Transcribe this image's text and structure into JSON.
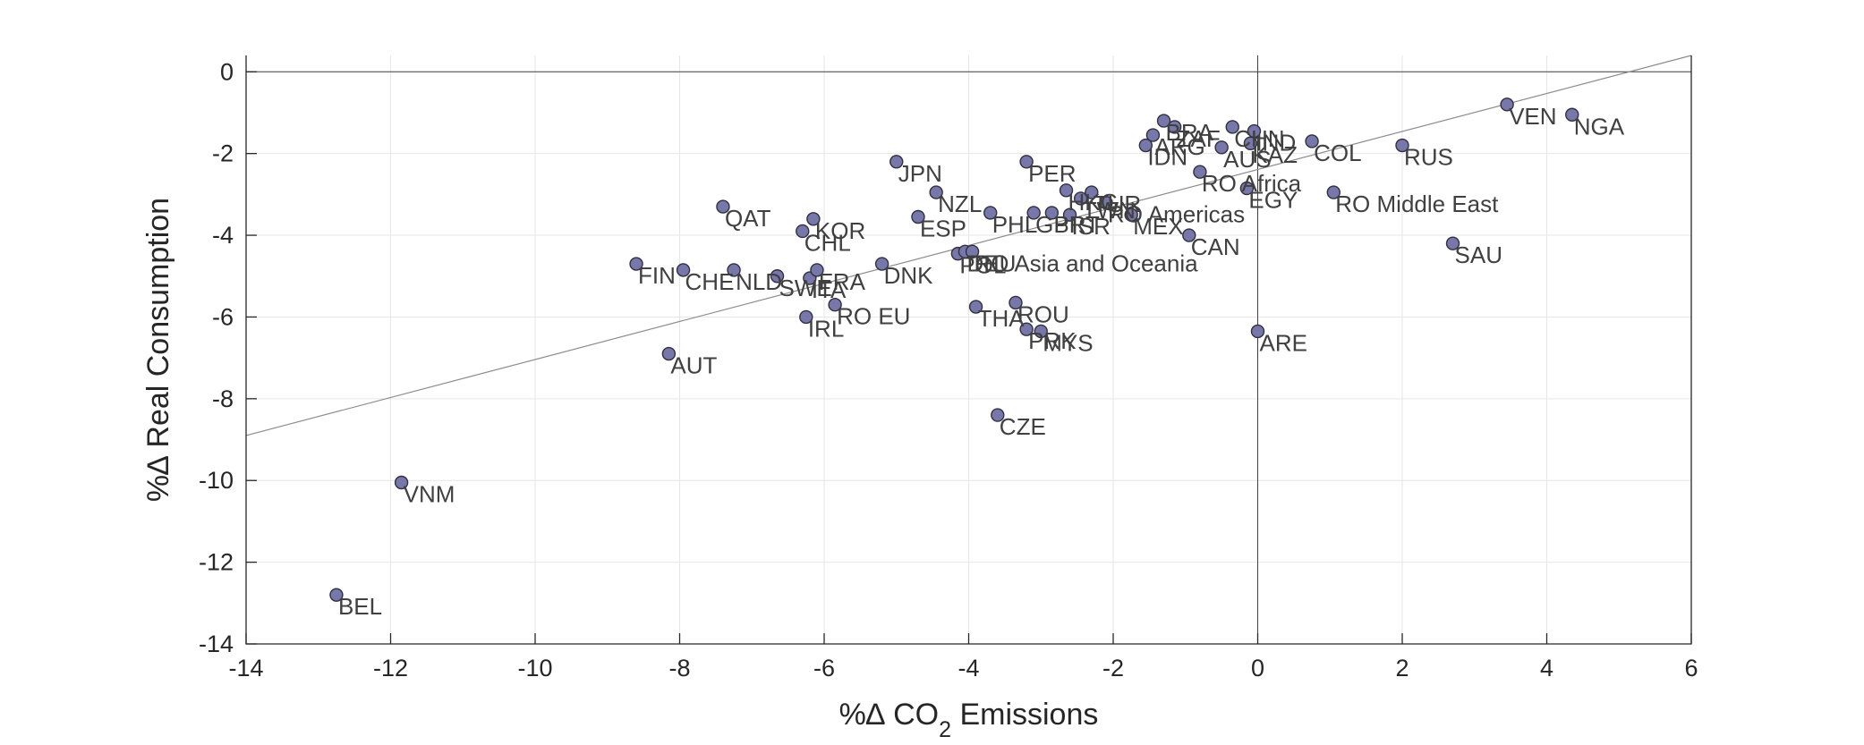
{
  "chart_data": {
    "type": "scatter",
    "title": "",
    "xlabel": {
      "prefix": "%∆ CO",
      "sub": "2",
      "suffix": " Emissions"
    },
    "ylabel": "%∆ Real Consumption",
    "xlim": [
      -14,
      6
    ],
    "ylim": [
      -14,
      0.4
    ],
    "xticks": [
      -14,
      -12,
      -10,
      -8,
      -6,
      -4,
      -2,
      0,
      2,
      4,
      6
    ],
    "yticks": [
      0,
      -2,
      -4,
      -6,
      -8,
      -10,
      -12,
      -14
    ],
    "grid": true,
    "colors": {
      "marker": "#7777aa",
      "marker_edge": "#303040",
      "fit_line": "#8c8c8c"
    },
    "fit_line": {
      "x": [
        -14,
        6
      ],
      "y": [
        -8.9,
        0.4
      ]
    },
    "points": [
      {
        "label": "BEL",
        "x": -12.75,
        "y": -12.8
      },
      {
        "label": "VNM",
        "x": -11.85,
        "y": -10.05
      },
      {
        "label": "AUT",
        "x": -8.15,
        "y": -6.9
      },
      {
        "label": "FIN",
        "x": -8.6,
        "y": -4.7
      },
      {
        "label": "CHE",
        "x": -7.95,
        "y": -4.85
      },
      {
        "label": "NLD",
        "x": -7.25,
        "y": -4.85
      },
      {
        "label": "SWE",
        "x": -6.65,
        "y": -5.0
      },
      {
        "label": "ITA",
        "x": -6.2,
        "y": -5.05
      },
      {
        "label": "FRA",
        "x": -6.1,
        "y": -4.85
      },
      {
        "label": "QAT",
        "x": -7.4,
        "y": -3.3
      },
      {
        "label": "CHL",
        "x": -6.3,
        "y": -3.9
      },
      {
        "label": "KOR",
        "x": -6.15,
        "y": -3.6
      },
      {
        "label": "IRL",
        "x": -6.25,
        "y": -6.0
      },
      {
        "label": "RO EU",
        "x": -5.85,
        "y": -5.7
      },
      {
        "label": "JPN",
        "x": -5.0,
        "y": -2.2
      },
      {
        "label": "DNK",
        "x": -5.2,
        "y": -4.7
      },
      {
        "label": "ESP",
        "x": -4.7,
        "y": -3.55
      },
      {
        "label": "NZL",
        "x": -4.45,
        "y": -2.95
      },
      {
        "label": "POL",
        "x": -4.15,
        "y": -4.45
      },
      {
        "label": "DEU",
        "x": -4.05,
        "y": -4.4
      },
      {
        "label": "RO Asia and Oceania",
        "x": -3.95,
        "y": -4.4
      },
      {
        "label": "THA",
        "x": -3.9,
        "y": -5.75
      },
      {
        "label": "PHL",
        "x": -3.7,
        "y": -3.45
      },
      {
        "label": "CZE",
        "x": -3.6,
        "y": -8.4
      },
      {
        "label": "ROU",
        "x": -3.35,
        "y": -5.65
      },
      {
        "label": "PER",
        "x": -3.2,
        "y": -2.2
      },
      {
        "label": "GBR",
        "x": -3.1,
        "y": -3.45
      },
      {
        "label": "PRT",
        "x": -2.85,
        "y": -3.45
      },
      {
        "label": "ISR",
        "x": -2.6,
        "y": -3.5
      },
      {
        "label": "HKG",
        "x": -2.65,
        "y": -2.9
      },
      {
        "label": "TWN",
        "x": -2.45,
        "y": -3.1
      },
      {
        "label": "TUR",
        "x": -2.3,
        "y": -2.95
      },
      {
        "label": "RO Americas",
        "x": -2.1,
        "y": -3.2
      },
      {
        "label": "PRK",
        "x": -3.2,
        "y": -6.3
      },
      {
        "label": "MYS",
        "x": -3.0,
        "y": -6.35
      },
      {
        "label": "MEX",
        "x": -1.75,
        "y": -3.5
      },
      {
        "label": "ARG",
        "x": -1.45,
        "y": -1.55
      },
      {
        "label": "IDN",
        "x": -1.55,
        "y": -1.8
      },
      {
        "label": "BRA",
        "x": -1.3,
        "y": -1.2
      },
      {
        "label": "ZAF",
        "x": -1.15,
        "y": -1.35
      },
      {
        "label": "CHN",
        "x": -0.35,
        "y": -1.35
      },
      {
        "label": "IND",
        "x": -0.05,
        "y": -1.45
      },
      {
        "label": "RO Africa",
        "x": -0.8,
        "y": -2.45
      },
      {
        "label": "AUS",
        "x": -0.5,
        "y": -1.85
      },
      {
        "label": "KAZ",
        "x": -0.1,
        "y": -1.75
      },
      {
        "label": "EGY",
        "x": -0.15,
        "y": -2.85
      },
      {
        "label": "CAN",
        "x": -0.95,
        "y": -4.0
      },
      {
        "label": "ARE",
        "x": 0.0,
        "y": -6.35
      },
      {
        "label": "COL",
        "x": 0.75,
        "y": -1.7
      },
      {
        "label": "RO Middle East",
        "x": 1.05,
        "y": -2.95
      },
      {
        "label": "RUS",
        "x": 2.0,
        "y": -1.8
      },
      {
        "label": "SAU",
        "x": 2.7,
        "y": -4.2
      },
      {
        "label": "VEN",
        "x": 3.45,
        "y": -0.8
      },
      {
        "label": "NGA",
        "x": 4.35,
        "y": -1.05
      }
    ]
  }
}
